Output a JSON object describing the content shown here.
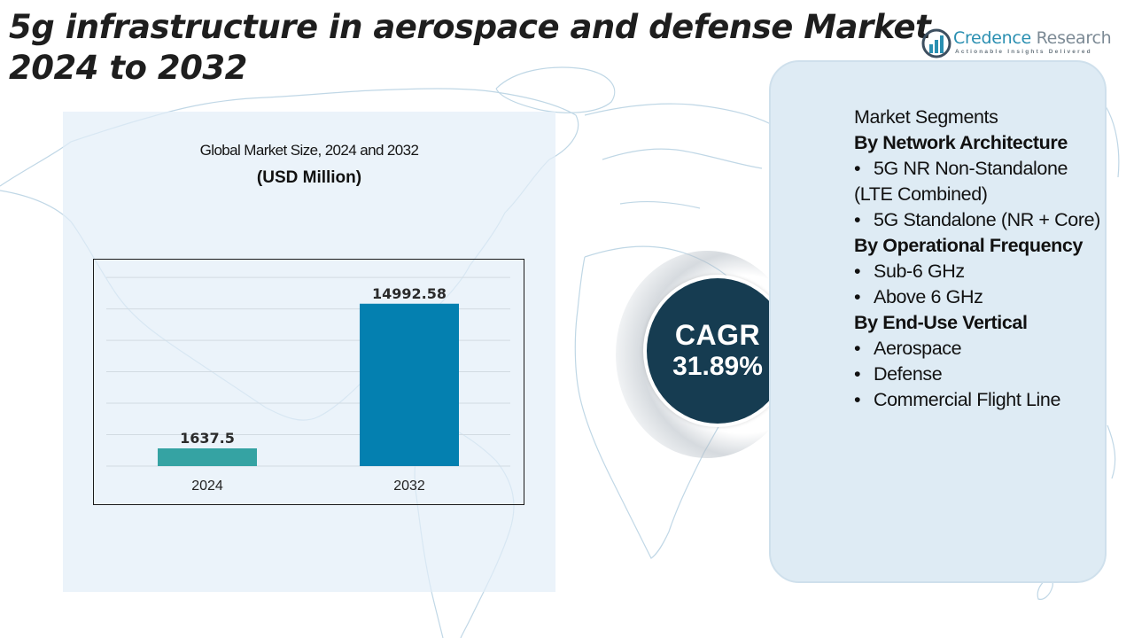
{
  "header": {
    "title_line1": "5g infrastructure in aerospace and defense Market",
    "title_line2": "2024 to 2032"
  },
  "logo": {
    "name_part1": "Credence",
    "name_part2": " Research",
    "tagline": "Actionable Insights Delivered",
    "icon": "bar-chart-circle-icon"
  },
  "colors": {
    "bar_2024": "#35a3a3",
    "bar_2032": "#0480b0",
    "cagr_circle": "#163c51",
    "segments_panel": "#deebf4",
    "chart_panel": "#e6f0f8",
    "map_lines": "#b9d3e3"
  },
  "chart_data": {
    "type": "bar",
    "title": "Global Market Size, 2024 and 2032",
    "subtitle": "(USD Million)",
    "categories": [
      "2024",
      "2032"
    ],
    "values": [
      1637.5,
      14992.58
    ],
    "data_labels": [
      "1637.5",
      "14992.58"
    ],
    "xlabel": "",
    "ylabel": "",
    "ylim": [
      0,
      18000
    ],
    "grid": true,
    "legend": "none"
  },
  "cagr": {
    "label": "CAGR",
    "value": "31.89%"
  },
  "segments": {
    "heading": "Market Segments",
    "groups": [
      {
        "title": "By Network Architecture",
        "items": [
          "5G NR Non-Standalone (LTE Combined)",
          "5G Standalone (NR + Core)"
        ]
      },
      {
        "title": "By Operational Frequency",
        "items": [
          "Sub-6 GHz",
          "Above 6 GHz"
        ]
      },
      {
        "title": "By End-Use Vertical",
        "items": [
          "Aerospace",
          "Defense",
          "Commercial Flight Line"
        ]
      }
    ]
  }
}
